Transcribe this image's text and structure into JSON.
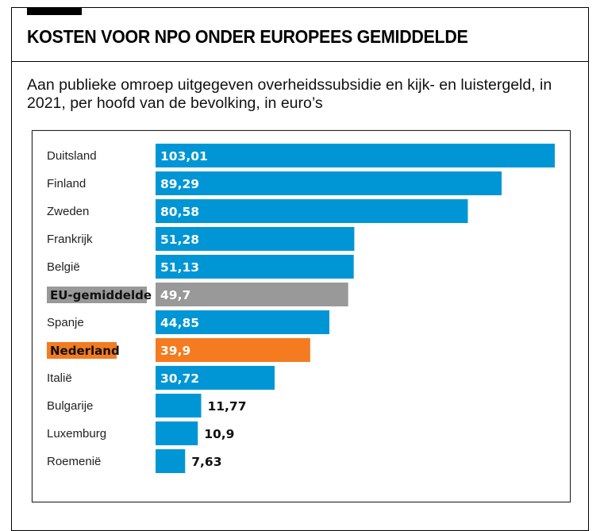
{
  "title": "KOSTEN VOOR NPO ONDER EUROPEES GEMIDDELDE",
  "subtitle": "Aan publieke omroep uitgegeven overheidssubsidie en kijk- en luistergeld, in 2021, per hoofd van de bevolking, in euro’s",
  "colors": {
    "default": "#0096d6",
    "eu": "#999999",
    "nl": "#f47b20"
  },
  "chart_data": {
    "type": "bar",
    "orientation": "horizontal",
    "title": "KOSTEN VOOR NPO ONDER EUROPEES GEMIDDELDE",
    "xlabel": "",
    "ylabel": "",
    "xlim": [
      0,
      103.01
    ],
    "grid": false,
    "categories": [
      "Duitsland",
      "Finland",
      "Zweden",
      "Frankrijk",
      "België",
      "EU-gemiddelde",
      "Spanje",
      "Nederland",
      "Italië",
      "Bulgarije",
      "Luxemburg",
      "Roemenië"
    ],
    "values": [
      103.01,
      89.29,
      80.58,
      51.28,
      51.13,
      49.7,
      44.85,
      39.9,
      30.72,
      11.77,
      10.9,
      7.63
    ],
    "value_labels": [
      "103,01",
      "89,29",
      "80,58",
      "51,28",
      "51,13",
      "49,7",
      "44,85",
      "39,9",
      "30,72",
      "11,77",
      "10,9",
      "7,63"
    ],
    "highlight": {
      "EU-gemiddelde": "eu",
      "Nederland": "nl"
    }
  }
}
